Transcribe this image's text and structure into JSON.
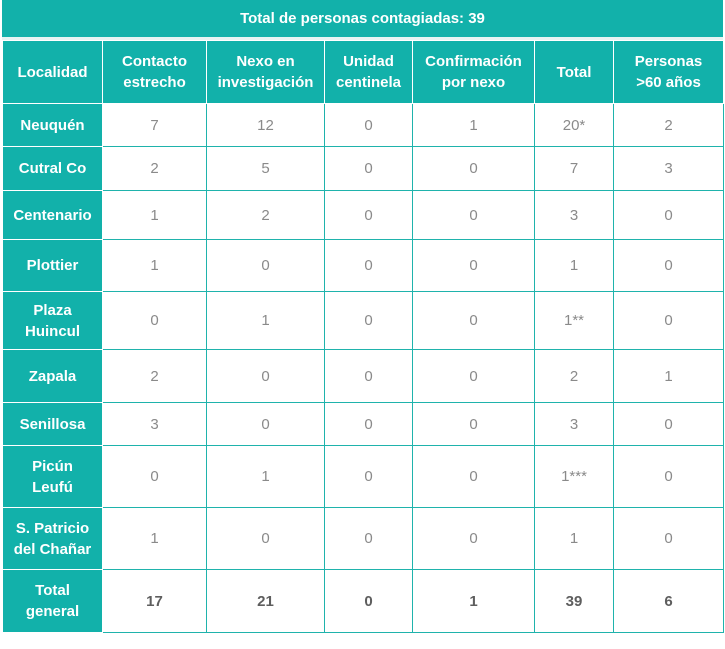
{
  "title": "Total de personas contagiadas: 39",
  "headers": [
    "Localidad",
    "Contacto estrecho",
    "Nexo en investigación",
    "Unidad centinela",
    "Confirmación por nexo",
    "Total",
    "Personas >60 años"
  ],
  "rows": [
    {
      "localidad": "Neuquén",
      "values": [
        "7",
        "12",
        "0",
        "1",
        "20*",
        "2"
      ]
    },
    {
      "localidad": "Cutral Co",
      "values": [
        "2",
        "5",
        "0",
        "0",
        "7",
        "3"
      ]
    },
    {
      "localidad": "Centenario",
      "values": [
        "1",
        "2",
        "0",
        "0",
        "3",
        "0"
      ]
    },
    {
      "localidad": "Plottier",
      "values": [
        "1",
        "0",
        "0",
        "0",
        "1",
        "0"
      ]
    },
    {
      "localidad": "Plaza Huincul",
      "values": [
        "0",
        "1",
        "0",
        "0",
        "1**",
        "0"
      ]
    },
    {
      "localidad": "Zapala",
      "values": [
        "2",
        "0",
        "0",
        "0",
        "2",
        "1"
      ]
    },
    {
      "localidad": "Senillosa",
      "values": [
        "3",
        "0",
        "0",
        "0",
        "3",
        "0"
      ]
    },
    {
      "localidad": "Picún Leufú",
      "values": [
        "0",
        "1",
        "0",
        "0",
        "1***",
        "0"
      ]
    },
    {
      "localidad": "S. Patricio del Chañar",
      "values": [
        "1",
        "0",
        "0",
        "0",
        "1",
        "0"
      ]
    }
  ],
  "total": {
    "localidad": "Total general",
    "values": [
      "17",
      "21",
      "0",
      "1",
      "39",
      "6"
    ]
  },
  "colors": {
    "teal": "#12b1aa",
    "value_text": "#8a8a8a",
    "total_text": "#5e5e5e"
  }
}
